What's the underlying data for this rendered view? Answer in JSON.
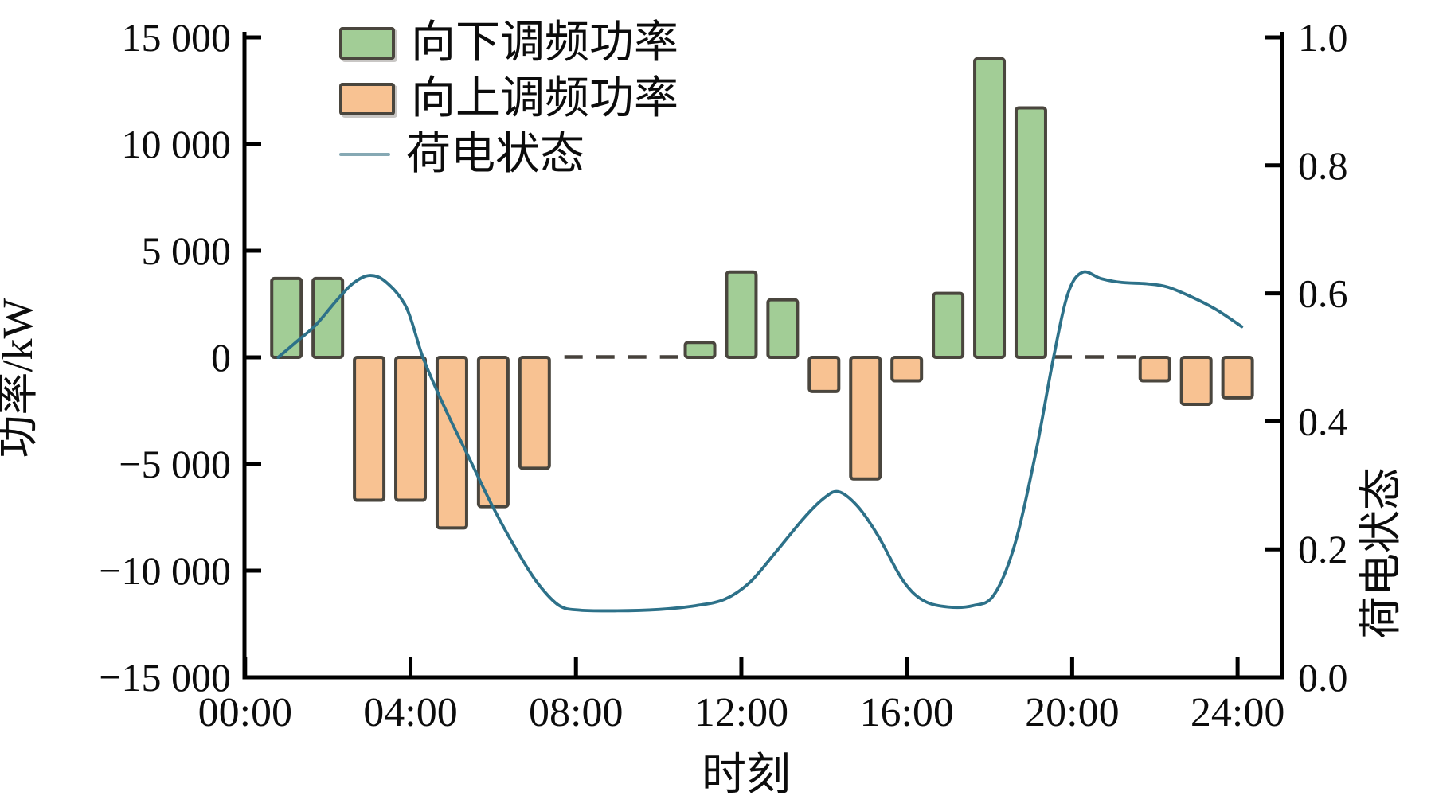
{
  "chart_data": {
    "type": "bar",
    "title": "",
    "x_axis": {
      "label": "时刻",
      "tick_hours": [
        0,
        4,
        8,
        12,
        16,
        20,
        24
      ],
      "tick_labels": [
        "00:00",
        "04:00",
        "08:00",
        "12:00",
        "16:00",
        "20:00",
        "24:00"
      ],
      "range_hours": [
        0,
        25.1
      ],
      "grid": false
    },
    "y_left": {
      "label": "功率/kW",
      "ticks": [
        15000,
        10000,
        5000,
        0,
        -5000,
        -10000,
        -15000
      ],
      "tick_labels": [
        "15 000",
        "10 000",
        "5 000",
        "0",
        "−5 000",
        "−10 000",
        "−15 000"
      ],
      "range": [
        -15000,
        15000
      ]
    },
    "y_right": {
      "label": "荷电状态",
      "ticks": [
        1.0,
        0.8,
        0.6,
        0.4,
        0.2,
        0.0
      ],
      "tick_labels": [
        "1.0",
        "0.8",
        "0.6",
        "0.4",
        "0.2",
        "0.0"
      ],
      "range": [
        0.0,
        1.0
      ]
    },
    "series": [
      {
        "name": "向下调频功率",
        "type": "bar",
        "color": "#a2cd96",
        "border_color": "#4a463e",
        "unit": "kW",
        "points": [
          {
            "hour": 1,
            "kw": 3700
          },
          {
            "hour": 2,
            "kw": 3700
          },
          {
            "hour": 11,
            "kw": 700
          },
          {
            "hour": 12,
            "kw": 4000
          },
          {
            "hour": 13,
            "kw": 2700
          },
          {
            "hour": 17,
            "kw": 3000
          },
          {
            "hour": 18,
            "kw": 14000
          },
          {
            "hour": 19,
            "kw": 11700
          }
        ]
      },
      {
        "name": "向上调频功率",
        "type": "bar",
        "color": "#f8c292",
        "border_color": "#4a463e",
        "unit": "kW",
        "points": [
          {
            "hour": 3,
            "kw": -6700
          },
          {
            "hour": 4,
            "kw": -6700
          },
          {
            "hour": 5,
            "kw": -8000
          },
          {
            "hour": 6,
            "kw": -7000
          },
          {
            "hour": 7,
            "kw": -5200
          },
          {
            "hour": 14,
            "kw": -1600
          },
          {
            "hour": 15,
            "kw": -5700
          },
          {
            "hour": 16,
            "kw": -1100
          },
          {
            "hour": 22,
            "kw": -1100
          },
          {
            "hour": 23,
            "kw": -2200
          },
          {
            "hour": 24,
            "kw": -1900
          }
        ]
      },
      {
        "name": "荷电状态",
        "type": "line",
        "axis": "right",
        "color": "#2d7189",
        "legend_line_color": "#86a9b4",
        "points": [
          [
            0.8,
            0.5
          ],
          [
            1.2,
            0.522
          ],
          [
            1.7,
            0.55
          ],
          [
            2.2,
            0.588
          ],
          [
            2.6,
            0.615
          ],
          [
            3.0,
            0.628
          ],
          [
            3.4,
            0.618
          ],
          [
            3.9,
            0.578
          ],
          [
            4.3,
            0.5
          ],
          [
            4.8,
            0.425
          ],
          [
            5.4,
            0.345
          ],
          [
            6.0,
            0.265
          ],
          [
            6.6,
            0.195
          ],
          [
            7.1,
            0.145
          ],
          [
            7.6,
            0.112
          ],
          [
            8.1,
            0.105
          ],
          [
            9.0,
            0.104
          ],
          [
            10.0,
            0.106
          ],
          [
            10.9,
            0.112
          ],
          [
            11.6,
            0.122
          ],
          [
            12.2,
            0.148
          ],
          [
            12.8,
            0.193
          ],
          [
            13.5,
            0.248
          ],
          [
            14.0,
            0.28
          ],
          [
            14.35,
            0.29
          ],
          [
            14.8,
            0.268
          ],
          [
            15.3,
            0.222
          ],
          [
            15.9,
            0.152
          ],
          [
            16.4,
            0.12
          ],
          [
            17.0,
            0.11
          ],
          [
            17.6,
            0.112
          ],
          [
            18.1,
            0.128
          ],
          [
            18.6,
            0.205
          ],
          [
            19.1,
            0.345
          ],
          [
            19.55,
            0.5
          ],
          [
            19.9,
            0.6
          ],
          [
            20.25,
            0.633
          ],
          [
            20.7,
            0.623
          ],
          [
            21.2,
            0.617
          ],
          [
            21.8,
            0.615
          ],
          [
            22.3,
            0.61
          ],
          [
            22.9,
            0.594
          ],
          [
            23.5,
            0.574
          ],
          [
            24.1,
            0.548
          ]
        ]
      }
    ],
    "zero_line": {
      "segments_hours": [
        [
          7.72,
          10.5
        ],
        [
          19.55,
          21.6
        ]
      ],
      "color": "#46413b",
      "style": "dashed"
    },
    "axis_color": "#000000",
    "background": "#ffffff",
    "legend_position": "top-left-inside"
  }
}
